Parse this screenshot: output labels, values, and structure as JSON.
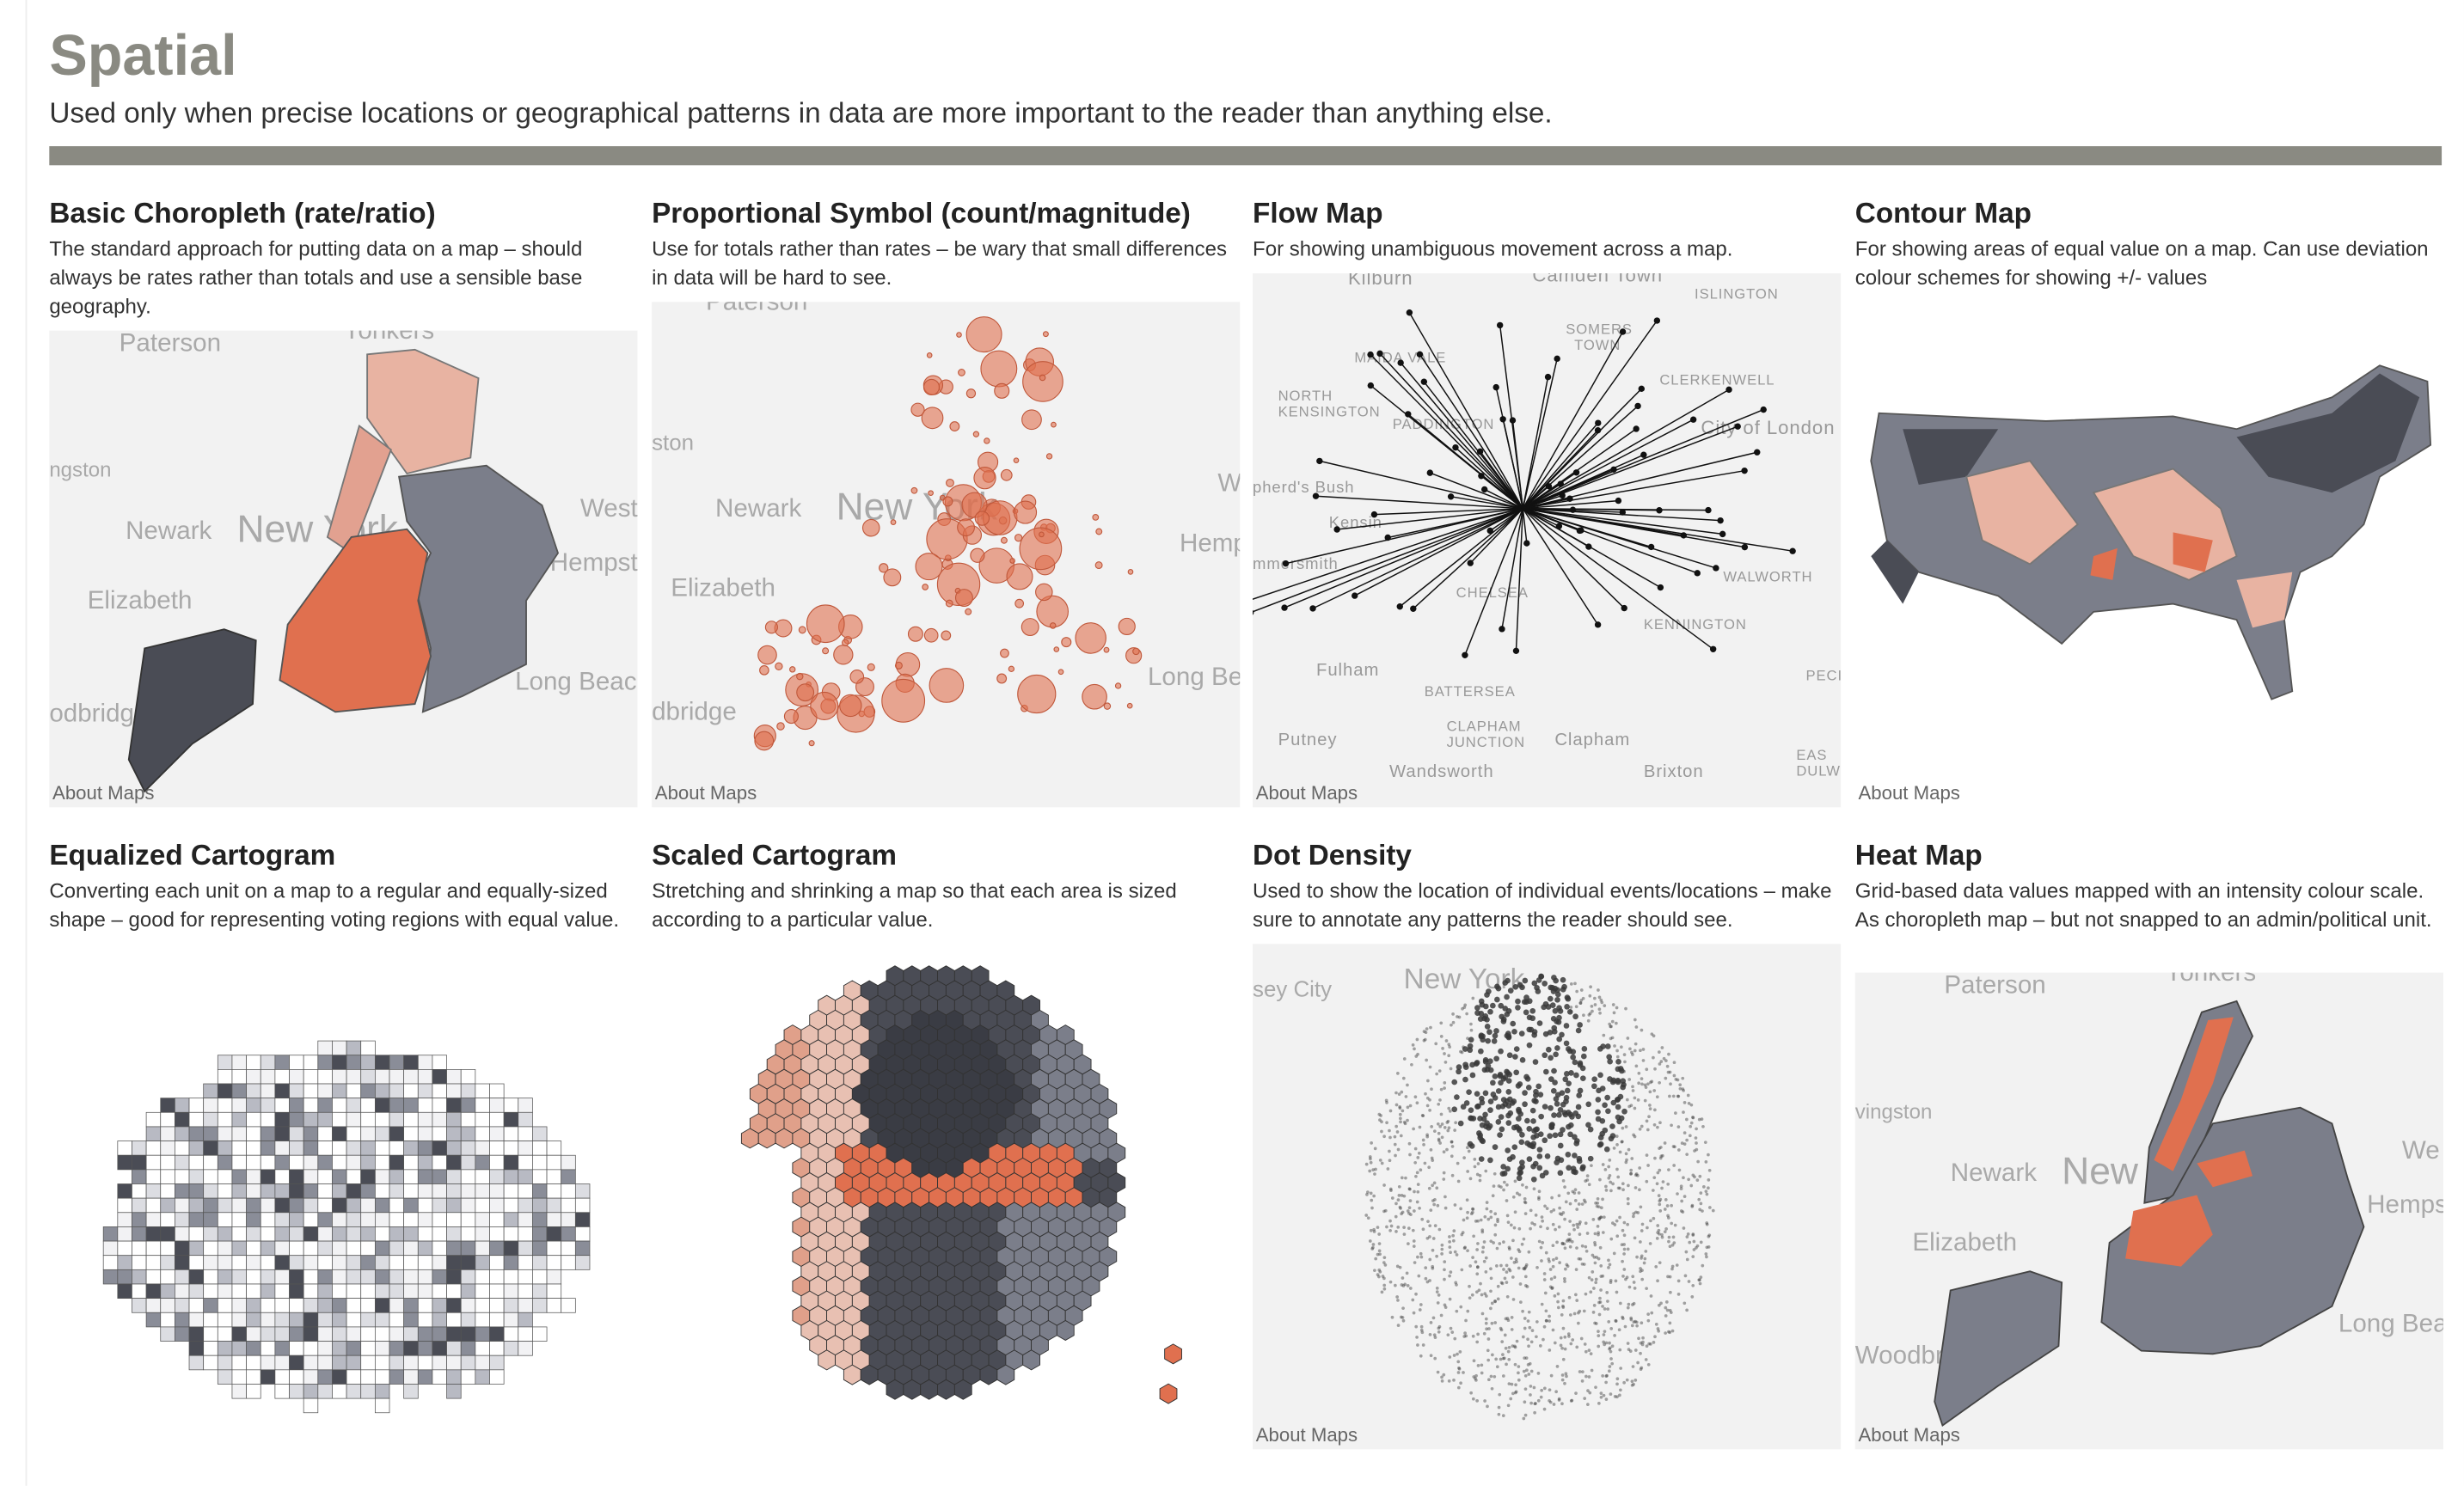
{
  "header": {
    "title": "Spatial",
    "subtitle": "Used only when precise locations or geographical patterns in data are more important to the reader than anything else."
  },
  "about_maps": "About Maps",
  "colors": {
    "accent": "#e0704f",
    "dark": "#4a4c55",
    "mid": "#7b7e8a",
    "light": "#e8b3a2",
    "rule": "#8a8a82"
  },
  "cards": [
    {
      "title": "Basic Choropleth (rate/ratio)",
      "desc": "The standard approach for putting data on a map – should always be rates rather than totals and use a sensible base geography.",
      "labels": [
        "Paterson",
        "Yonkers",
        "ngston",
        "Newark",
        "New York",
        "West",
        "Hempste",
        "Elizabeth",
        "Long Beach",
        "odbridg"
      ]
    },
    {
      "title": "Proportional Symbol (count/magnitude)",
      "desc": "Use for totals rather than rates – be wary that small differences in data will be hard to see.",
      "labels": [
        "Paterson",
        "ston",
        "Newark",
        "New York",
        "W",
        "Hemp",
        "Elizabeth",
        "Long Be",
        "dbridge"
      ]
    },
    {
      "title": "Flow Map",
      "desc": "For showing unambiguous movement across a map.",
      "labels": [
        "Kilburn",
        "Camden Town",
        "ISLINGTON",
        "SOMERS TOWN",
        "MAIDA VALE",
        "CLERKENWELL",
        "NORTH KENSINGTON",
        "PADDINGTON",
        "City of London",
        "pherd's Bush",
        "Kensin",
        "mmersmith",
        "CHELSEA",
        "WALWORTH",
        "KENNINGTON",
        "Fulham",
        "BATTERSEA",
        "CLAPHAM JUNCTION",
        "Clapham",
        "Putney",
        "Wandsworth",
        "Brixton",
        "PECI",
        "EAS DULW"
      ]
    },
    {
      "title": "Contour Map",
      "desc": "For showing areas of equal value on a map. Can use deviation colour schemes for showing +/- values",
      "labels": []
    },
    {
      "title": "Equalized Cartogram",
      "desc": "Converting each unit on a map to a regular and equally-sized shape – good for representing voting regions with equal value.",
      "labels": []
    },
    {
      "title": "Scaled Cartogram",
      "desc": "Stretching and shrinking a map so that each area is sized according to a particular value.",
      "labels": []
    },
    {
      "title": "Dot Density",
      "desc": "Used to show the location of individual events/locations – make sure to annotate any patterns the reader should see.",
      "labels": [
        "sey City",
        "New York"
      ]
    },
    {
      "title": "Heat Map",
      "desc": "Grid-based data values mapped with an intensity colour scale. As choropleth map – but not snapped to an admin/political unit.",
      "labels": [
        "Paterson",
        "Yonkers",
        "vingston",
        "Newark",
        "New",
        "We",
        "Hemps",
        "Elizabeth",
        "Long Beac",
        "Woodbridge"
      ]
    }
  ]
}
